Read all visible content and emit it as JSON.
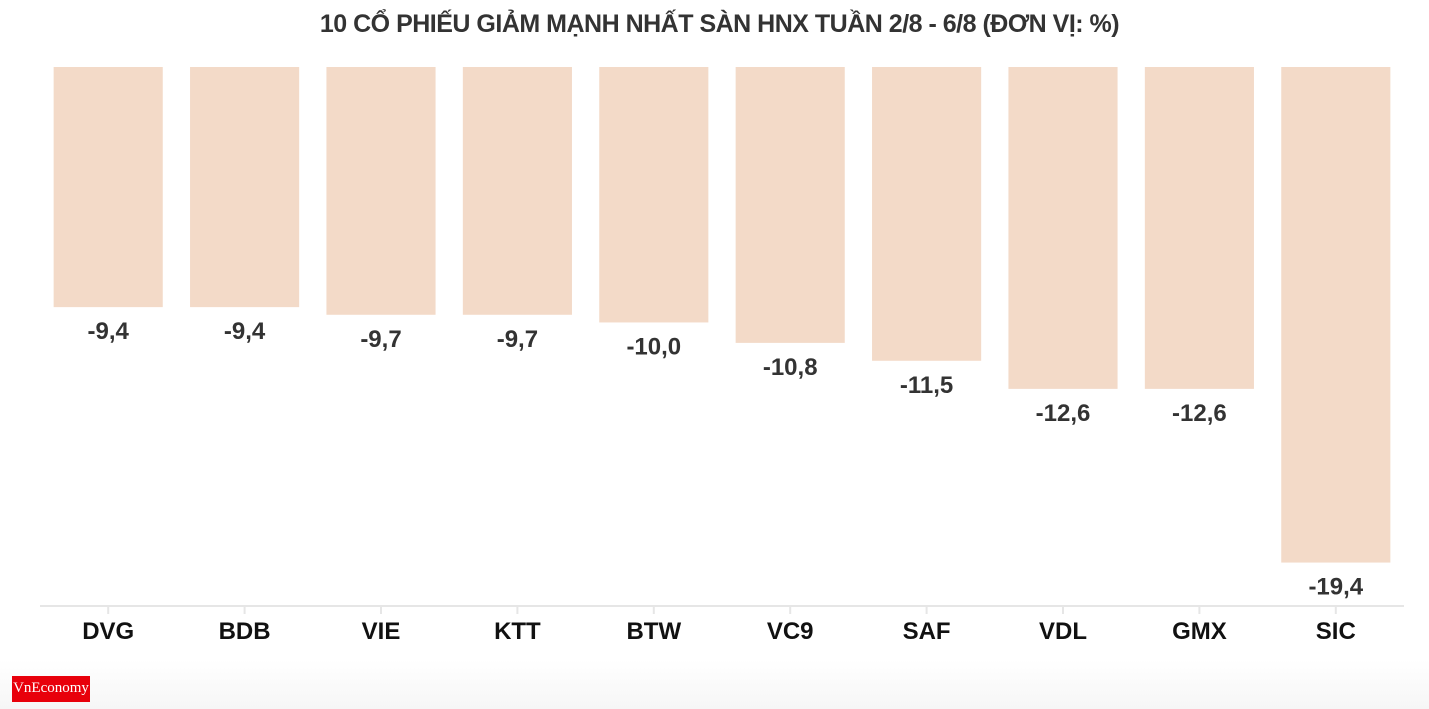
{
  "chart_data": {
    "type": "bar",
    "title": "10 CỔ PHIẾU GIẢM MẠNH NHẤT SÀN HNX TUẦN 2/8 - 6/8 (ĐƠN VỊ: %)",
    "categories": [
      "DVG",
      "BDB",
      "VIE",
      "KTT",
      "BTW",
      "VC9",
      "SAF",
      "VDL",
      "GMX",
      "SIC"
    ],
    "values": [
      -9.4,
      -9.4,
      -9.7,
      -9.7,
      -10.0,
      -10.8,
      -11.5,
      -12.6,
      -12.6,
      -19.4
    ],
    "data_labels": [
      "-9,4",
      "-9,4",
      "-9,7",
      "-9,7",
      "-10,0",
      "-10,8",
      "-11,5",
      "-12,6",
      "-12,6",
      "-19,4"
    ],
    "xlabel": "",
    "ylabel": "",
    "ylim": [
      -21.1,
      0
    ],
    "grid": false,
    "bar_color": "#f3dac8",
    "label_color": "#333333"
  },
  "logo": {
    "text": "VnEconomy"
  }
}
